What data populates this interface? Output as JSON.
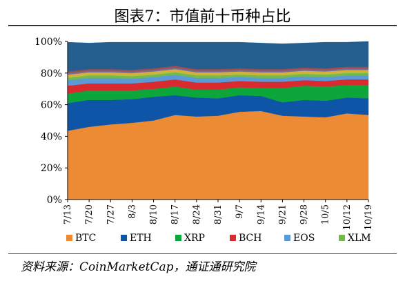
{
  "title": "图表7：市值前十币种占比",
  "source": "资料来源：CoinMarketCap，通证通研究院",
  "chart_data": {
    "type": "area",
    "stacked": true,
    "percent": true,
    "title": "图表7：市值前十币种占比",
    "x": [
      "7/13",
      "7/20",
      "7/27",
      "8/3",
      "8/10",
      "8/17",
      "8/24",
      "8/31",
      "9/7",
      "9/14",
      "9/21",
      "9/28",
      "10/5",
      "10/12",
      "10/19"
    ],
    "ylim": [
      0,
      100
    ],
    "yticks": [
      "0%",
      "20%",
      "40%",
      "60%",
      "80%",
      "100%"
    ],
    "legend_position": "bottom",
    "series": [
      {
        "name": "BTC",
        "color": "#ED8B34",
        "values": [
          43.5,
          46,
          47.5,
          48.5,
          50,
          53.5,
          52.5,
          53,
          55.5,
          56,
          53,
          52.5,
          52,
          54.5,
          53.5
        ]
      },
      {
        "name": "ETH",
        "color": "#0E55A8",
        "values": [
          17.5,
          17,
          15.5,
          15,
          15,
          12.5,
          12,
          11,
          10.5,
          9.5,
          8.5,
          10.5,
          10.5,
          10,
          10.5
        ]
      },
      {
        "name": "XRP",
        "color": "#0CA63A",
        "values": [
          6,
          6,
          6,
          5.5,
          5,
          5.5,
          5,
          5.5,
          5,
          5,
          9,
          9,
          9,
          8,
          8.5
        ]
      },
      {
        "name": "BCH",
        "color": "#D92A2F",
        "values": [
          5,
          4.5,
          4.5,
          4.5,
          4.5,
          4.5,
          4.5,
          4.5,
          4,
          4,
          4,
          3.5,
          3.5,
          3.5,
          3.5
        ]
      },
      {
        "name": "EOS",
        "color": "#5A9BD7",
        "values": [
          3.5,
          3.5,
          3.5,
          3,
          3,
          3,
          3,
          3,
          2.5,
          2.5,
          2.5,
          2.5,
          2.5,
          2.5,
          2.5
        ]
      },
      {
        "name": "XLM",
        "color": "#73B94B",
        "values": [
          1.5,
          1.5,
          1.5,
          1.5,
          1.5,
          1.5,
          1.5,
          1.5,
          1.5,
          1.5,
          1.5,
          1.5,
          1.5,
          1.5,
          1.5
        ]
      },
      {
        "name": "",
        "color": "#B9BE3E",
        "values": [
          1.0,
          1.0,
          1.0,
          1.0,
          1.0,
          1.0,
          1.0,
          1.0,
          1.0,
          1.0,
          1.0,
          1.0,
          1.0,
          1.0,
          1.0
        ]
      },
      {
        "name": "",
        "color": "#E0A93A",
        "values": [
          1.0,
          1.0,
          1.0,
          1.0,
          1.0,
          1.0,
          1.0,
          1.0,
          1.0,
          1.0,
          1.0,
          1.0,
          1.0,
          1.0,
          1.0
        ]
      },
      {
        "name": "",
        "color": "#6F6F9A",
        "values": [
          1.0,
          1.0,
          1.0,
          1.0,
          1.0,
          1.0,
          1.0,
          1.0,
          1.0,
          1.0,
          1.0,
          1.0,
          1.0,
          1.0,
          1.0
        ]
      },
      {
        "name": "",
        "color": "#A64A4A",
        "values": [
          1.0,
          1.0,
          1.0,
          1.0,
          1.0,
          1.0,
          1.0,
          1.0,
          1.0,
          1.0,
          1.0,
          1.0,
          1.0,
          1.0,
          1.0
        ]
      },
      {
        "name": "",
        "color": "#245E8F",
        "values": [
          18.5,
          16.5,
          17,
          17.5,
          16.5,
          15,
          17,
          17,
          16.5,
          16.5,
          16,
          15.5,
          16.5,
          15.5,
          16
        ]
      }
    ]
  }
}
